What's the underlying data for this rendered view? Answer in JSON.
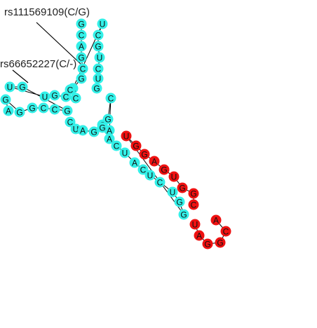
{
  "annotations": {
    "snp1": "rs111569109(C/G)",
    "snp2": "rs66652227(C/-)"
  },
  "colors": {
    "cyan": "#33f0e8",
    "red": "#ee1111",
    "backbone": "#000000",
    "background": "#ffffff"
  },
  "sequence": {
    "upper_hairpin": [
      "G",
      "C",
      "A",
      "G",
      "C",
      "G",
      "A",
      "U",
      "C",
      "G",
      "U",
      "C",
      "U",
      "G"
    ],
    "left_hairpin": [
      "A",
      "G",
      "G",
      "G",
      "C",
      "C",
      "G",
      "G",
      "U",
      "U",
      "G",
      "C",
      "C",
      "C"
    ],
    "loop_region": [
      "C",
      "U",
      "A",
      "G",
      "C",
      "A",
      "C",
      "G",
      "G",
      "A"
    ],
    "lower_stem": [
      "C",
      "U",
      "A",
      "C",
      "U",
      "C",
      "U",
      "G",
      "G",
      "U",
      "G",
      "G",
      "A",
      "G",
      "U",
      "G",
      "G",
      "C"
    ],
    "terminal_loop": [
      "A",
      "C",
      "G",
      "G",
      "A",
      "U"
    ]
  }
}
